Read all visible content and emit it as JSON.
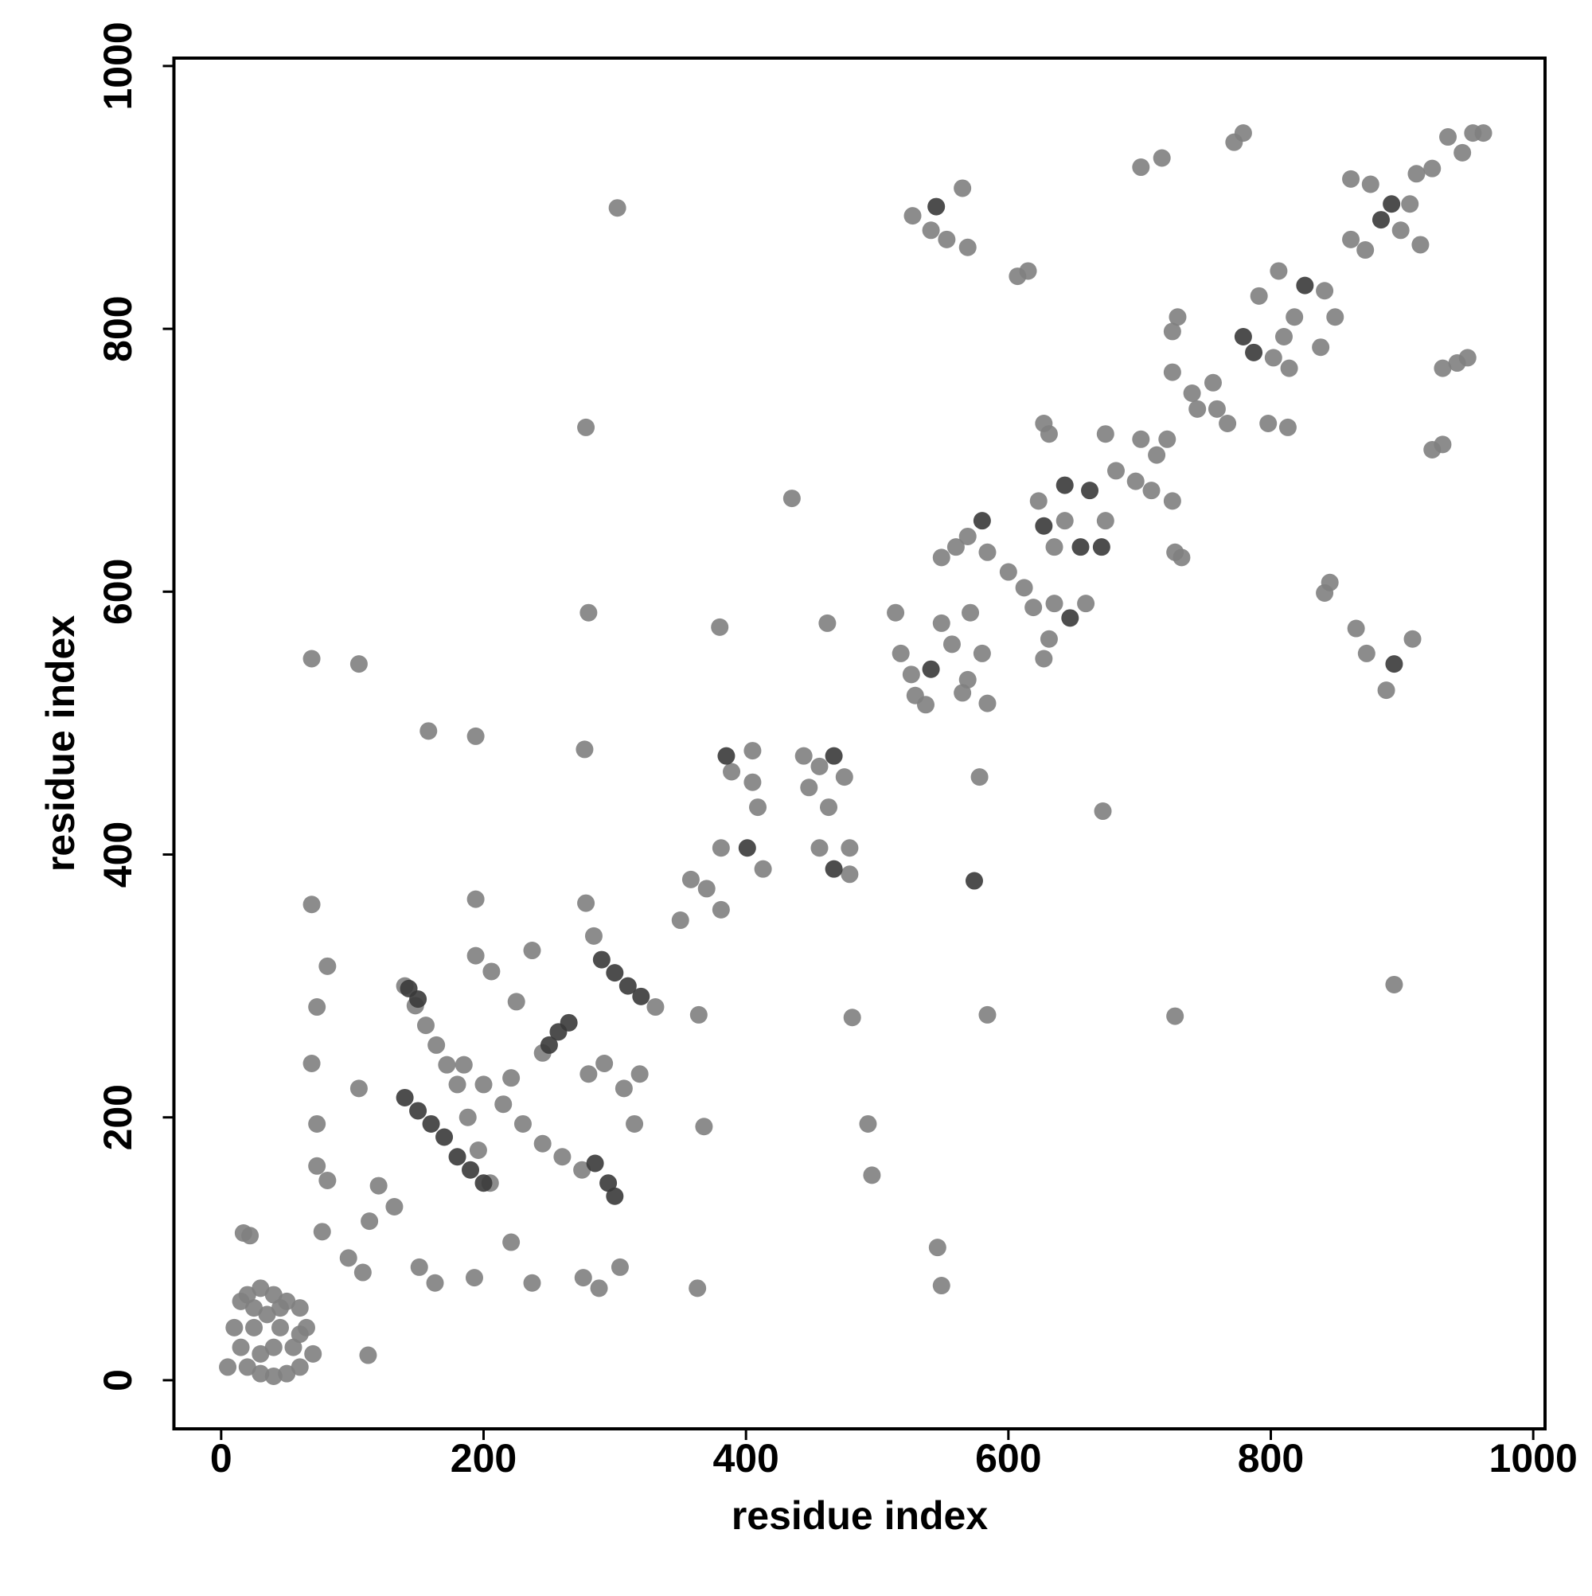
{
  "chart_data": {
    "type": "scatter",
    "xlabel": "residue index",
    "ylabel": "residue index",
    "xlim": [
      -36,
      1009
    ],
    "ylim": [
      -37,
      1006
    ],
    "xticks": [
      0,
      200,
      400,
      600,
      800,
      1000
    ],
    "yticks": [
      0,
      200,
      400,
      600,
      800,
      1000
    ],
    "grid": false,
    "series": [
      {
        "color": "#7f7f7f",
        "x": [
          5,
          10,
          15,
          20,
          30,
          40,
          50,
          60,
          65,
          70,
          60,
          50,
          40,
          30,
          20,
          15,
          25,
          35,
          45,
          40,
          30,
          55,
          60,
          45,
          25,
          17,
          22,
          140,
          148,
          156,
          164,
          172,
          180,
          188,
          196,
          205,
          185,
          200,
          215,
          230,
          245,
          260,
          275,
          69,
          73,
          81,
          69,
          73,
          73,
          81,
          77,
          97,
          108,
          69,
          105,
          105,
          120,
          132,
          113,
          112,
          151,
          163,
          158,
          193,
          194,
          194,
          194,
          206,
          221,
          237,
          225,
          237,
          221,
          245,
          280,
          292,
          319,
          307,
          315,
          276,
          288,
          304,
          284,
          331,
          350,
          370,
          381,
          358,
          302,
          278,
          280,
          277,
          278,
          364,
          368,
          363,
          380,
          389,
          405,
          405,
          409,
          413,
          381,
          435,
          462,
          444,
          456,
          475,
          448,
          463,
          456,
          479,
          479,
          481,
          493,
          496,
          514,
          518,
          526,
          537,
          529,
          549,
          557,
          580,
          571,
          569,
          527,
          541,
          553,
          565,
          569,
          549,
          560,
          569,
          584,
          600,
          612,
          619,
          578,
          584,
          546,
          549,
          584,
          565,
          607,
          615,
          623,
          674,
          643,
          635,
          627,
          631,
          635,
          659,
          631,
          627,
          672,
          674,
          682,
          697,
          701,
          713,
          721,
          709,
          725,
          727,
          732,
          727,
          701,
          717,
          729,
          725,
          725,
          740,
          756,
          767,
          744,
          759,
          791,
          806,
          841,
          849,
          838,
          814,
          802,
          818,
          810,
          798,
          813,
          772,
          779,
          841,
          845,
          861,
          861,
          872,
          876,
          899,
          906,
          914,
          911,
          923,
          935,
          946,
          954,
          962,
          931,
          942,
          950,
          923,
          931,
          865,
          873,
          888,
          908,
          894
        ],
        "values": [
          10,
          40,
          60,
          65,
          70,
          65,
          60,
          55,
          40,
          20,
          10,
          5,
          3,
          5,
          10,
          25,
          40,
          50,
          40,
          25,
          20,
          25,
          35,
          55,
          55,
          112,
          110,
          300,
          285,
          270,
          255,
          240,
          225,
          200,
          175,
          150,
          240,
          225,
          210,
          195,
          180,
          170,
          160,
          362,
          284,
          315,
          241,
          195,
          163,
          152,
          113,
          93,
          82,
          549,
          545,
          222,
          148,
          132,
          121,
          19,
          86,
          74,
          494,
          78,
          490,
          366,
          323,
          311,
          105,
          74,
          288,
          327,
          230,
          249,
          233,
          241,
          233,
          222,
          195,
          78,
          70,
          86,
          338,
          284,
          350,
          374,
          358,
          381,
          892,
          725,
          584,
          480,
          363,
          278,
          193,
          70,
          573,
          463,
          479,
          455,
          436,
          389,
          405,
          671,
          576,
          475,
          467,
          459,
          451,
          436,
          405,
          405,
          385,
          276,
          195,
          156,
          584,
          553,
          537,
          514,
          521,
          576,
          560,
          553,
          584,
          533,
          886,
          875,
          868,
          907,
          862,
          626,
          634,
          642,
          630,
          615,
          603,
          588,
          459,
          278,
          101,
          72,
          515,
          523,
          840,
          844,
          669,
          654,
          654,
          634,
          728,
          720,
          591,
          591,
          564,
          549,
          433,
          720,
          692,
          684,
          716,
          704,
          716,
          677,
          669,
          630,
          626,
          277,
          923,
          930,
          809,
          798,
          767,
          751,
          759,
          728,
          739,
          739,
          825,
          844,
          829,
          809,
          786,
          770,
          778,
          809,
          794,
          728,
          725,
          942,
          949,
          599,
          607,
          914,
          868,
          860,
          910,
          875,
          895,
          864,
          918,
          922,
          946,
          934,
          949,
          949,
          770,
          774,
          778,
          708,
          712,
          572,
          553,
          525,
          564,
          301
        ]
      },
      {
        "color": "#3a3a3a",
        "x": [
          143,
          150,
          140,
          150,
          160,
          170,
          180,
          190,
          200,
          285,
          295,
          300,
          257,
          265,
          250,
          290,
          300,
          310,
          320,
          385,
          401,
          467,
          467,
          541,
          545,
          580,
          574,
          627,
          643,
          662,
          671,
          655,
          647,
          779,
          787,
          826,
          884,
          892,
          894
        ],
        "values": [
          298,
          290,
          215,
          205,
          195,
          185,
          170,
          160,
          150,
          165,
          150,
          140,
          265,
          272,
          255,
          320,
          310,
          300,
          292,
          475,
          405,
          475,
          389,
          541,
          893,
          654,
          380,
          650,
          681,
          677,
          634,
          634,
          580,
          794,
          782,
          833,
          883,
          895,
          545
        ]
      }
    ]
  }
}
